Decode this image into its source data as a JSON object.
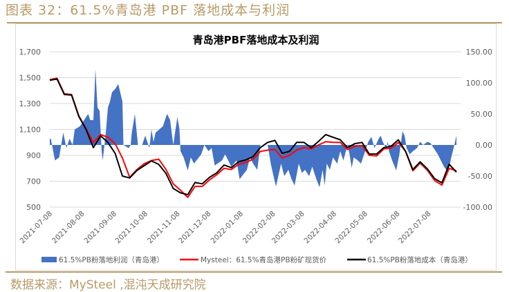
{
  "figure_title": "图表 32：61.5%青岛港 PBF 落地成本与利润",
  "source": "数据来源：MySteel ,混沌天成研究院",
  "colors": {
    "profit": "#4472C4",
    "price": "#FF0000",
    "cost": "#000000",
    "accent": "#b79a66"
  },
  "chart_data": {
    "type": "line+area",
    "title": "青岛港PBF落地成本及利润",
    "x_origin": "2021-07-08",
    "x_unit": "days since origin",
    "xlim": [
      0,
      392
    ],
    "x_ticks": [
      {
        "day": 0,
        "label": "2021-07-08"
      },
      {
        "day": 31,
        "label": "2021-08-08"
      },
      {
        "day": 62,
        "label": "2021-09-08"
      },
      {
        "day": 92,
        "label": "2021-10-08"
      },
      {
        "day": 123,
        "label": "2021-11-08"
      },
      {
        "day": 153,
        "label": "2021-12-08"
      },
      {
        "day": 184,
        "label": "2022-01-08"
      },
      {
        "day": 215,
        "label": "2022-02-08"
      },
      {
        "day": 243,
        "label": "2022-03-08"
      },
      {
        "day": 274,
        "label": "2022-04-08"
      },
      {
        "day": 304,
        "label": "2022-05-08"
      },
      {
        "day": 335,
        "label": "2022-06-08"
      },
      {
        "day": 365,
        "label": "2022-07-08"
      }
    ],
    "y_left": {
      "lim": [
        500,
        1700
      ],
      "ticks": [
        "1,700",
        "1,500",
        "1,300",
        "1,100",
        "900",
        "700",
        "500"
      ],
      "tick_values": [
        1700,
        1500,
        1300,
        1100,
        900,
        700,
        500
      ]
    },
    "y_right": {
      "lim": [
        -100,
        150
      ],
      "ticks": [
        "150.00",
        "100.00",
        "50.00",
        "0.00",
        "-50.00",
        "-100.00"
      ],
      "tick_values": [
        150,
        100,
        50,
        0,
        -50,
        -100
      ]
    },
    "grid": true,
    "legend_position": "bottom",
    "series": [
      {
        "name": "61.5%PB粉落地利润（青岛港）",
        "type": "area",
        "axis": "right",
        "points": [
          [
            0,
            10
          ],
          [
            1,
            10
          ],
          [
            5,
            -25
          ],
          [
            9,
            -20
          ],
          [
            13,
            20
          ],
          [
            16,
            -5
          ],
          [
            19,
            10
          ],
          [
            22,
            0
          ],
          [
            24,
            25
          ],
          [
            29,
            30
          ],
          [
            33,
            40
          ],
          [
            37,
            50
          ],
          [
            39,
            40
          ],
          [
            42,
            40
          ],
          [
            44,
            122
          ],
          [
            46,
            60
          ],
          [
            48,
            55
          ],
          [
            50,
            -10
          ],
          [
            51,
            -25
          ],
          [
            54,
            20
          ],
          [
            56,
            60
          ],
          [
            58,
            70
          ],
          [
            60,
            85
          ],
          [
            63,
            90
          ],
          [
            66,
            98
          ],
          [
            70,
            70
          ],
          [
            71,
            0
          ],
          [
            76,
            -5
          ],
          [
            78,
            0
          ],
          [
            79,
            19
          ],
          [
            82,
            50
          ],
          [
            85,
            0
          ],
          [
            89,
            0
          ],
          [
            92,
            15
          ],
          [
            96,
            -5
          ],
          [
            98,
            25
          ],
          [
            100,
            5
          ],
          [
            102,
            20
          ],
          [
            109,
            30
          ],
          [
            113,
            50
          ],
          [
            116,
            40
          ],
          [
            119,
            0
          ],
          [
            123,
            45
          ],
          [
            125,
            25
          ],
          [
            126,
            -10
          ],
          [
            129,
            -20
          ],
          [
            133,
            -41
          ],
          [
            136,
            -20
          ],
          [
            139,
            -30
          ],
          [
            146,
            -15
          ],
          [
            149,
            0
          ],
          [
            153,
            -10
          ],
          [
            156,
            -5
          ],
          [
            159,
            -33
          ],
          [
            166,
            -25
          ],
          [
            169,
            -15
          ],
          [
            175,
            -35
          ],
          [
            180,
            -25
          ],
          [
            183,
            -55
          ],
          [
            190,
            -40
          ],
          [
            193,
            -20
          ],
          [
            196,
            -30
          ],
          [
            200,
            -40
          ],
          [
            203,
            0
          ],
          [
            210,
            0
          ],
          [
            213,
            -30
          ],
          [
            215,
            -45
          ],
          [
            218,
            -67
          ],
          [
            223,
            -30
          ],
          [
            226,
            -50
          ],
          [
            230,
            -40
          ],
          [
            233,
            -55
          ],
          [
            236,
            -65
          ],
          [
            240,
            -30
          ],
          [
            243,
            -45
          ],
          [
            246,
            -40
          ],
          [
            250,
            -50
          ],
          [
            253,
            -35
          ],
          [
            257,
            -55
          ],
          [
            260,
            -68
          ],
          [
            263,
            -40
          ],
          [
            265,
            -65
          ],
          [
            267,
            -30
          ],
          [
            270,
            -40
          ],
          [
            273,
            -20
          ],
          [
            277,
            -30
          ],
          [
            280,
            -10
          ],
          [
            283,
            -25
          ],
          [
            287,
            0
          ],
          [
            289,
            -15
          ],
          [
            291,
            -37
          ],
          [
            293,
            -20
          ],
          [
            297,
            -25
          ],
          [
            300,
            -30
          ],
          [
            303,
            -15
          ],
          [
            307,
            5
          ],
          [
            310,
            13
          ],
          [
            313,
            -5
          ],
          [
            317,
            10
          ],
          [
            319,
            15
          ],
          [
            321,
            5
          ],
          [
            324,
            -5
          ],
          [
            326,
            5
          ],
          [
            327,
            -10
          ],
          [
            330,
            -25
          ],
          [
            334,
            -41
          ],
          [
            337,
            -15
          ],
          [
            340,
            22
          ],
          [
            342,
            15
          ],
          [
            344,
            -5
          ],
          [
            347,
            -15
          ],
          [
            350,
            -10
          ],
          [
            354,
            -5
          ],
          [
            357,
            5
          ],
          [
            360,
            0
          ],
          [
            364,
            5
          ],
          [
            367,
            3
          ],
          [
            370,
            -5
          ],
          [
            374,
            -15
          ],
          [
            377,
            -25
          ],
          [
            380,
            -35
          ],
          [
            384,
            -44
          ],
          [
            387,
            -20
          ],
          [
            390,
            0
          ],
          [
            392,
            15
          ]
        ]
      },
      {
        "name": "Mysteel：61.5%青岛港PB粉矿现货价",
        "type": "line",
        "axis": "left",
        "step_days": 7,
        "values": [
          1485,
          1495,
          1375,
          1370,
          1205,
          1105,
          1000,
          1060,
          1040,
          990,
          880,
          730,
          790,
          835,
          860,
          870,
          790,
          680,
          630,
          575,
          660,
          660,
          710,
          750,
          800,
          790,
          830,
          845,
          870,
          930,
          940,
          945,
          880,
          900,
          940,
          960,
          950,
          980,
          1005,
          1000,
          1000,
          945,
          970,
          975,
          900,
          895,
          950,
          955,
          1000,
          930,
          780,
          840,
          785,
          705,
          670,
          800,
          780
        ]
      },
      {
        "name": "61.5%PB粉落地成本（青岛港）",
        "type": "line",
        "axis": "left",
        "step_days": 7,
        "values": [
          1480,
          1490,
          1370,
          1365,
          1200,
          1100,
          960,
          1050,
          1000,
          915,
          740,
          725,
          783,
          820,
          857,
          830,
          760,
          644,
          610,
          596,
          690,
          680,
          730,
          765,
          825,
          805,
          850,
          865,
          890,
          960,
          1000,
          1015,
          916,
          930,
          1000,
          1000,
          960,
          1007,
          1060,
          1040,
          1020,
          960,
          990,
          1000,
          910,
          910,
          960,
          970,
          1020,
          930,
          790,
          850,
          795,
          720,
          687,
          831,
          770
        ]
      }
    ]
  }
}
